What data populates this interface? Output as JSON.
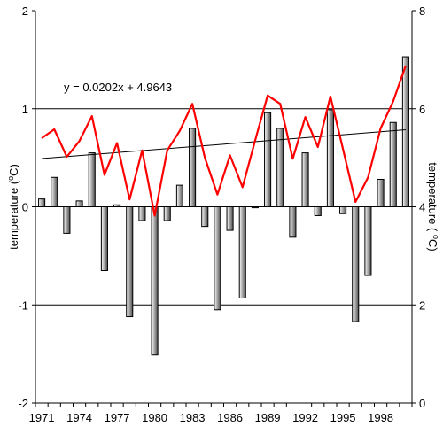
{
  "chart_data": {
    "type": "bar",
    "x": [
      1971,
      1972,
      1973,
      1974,
      1975,
      1976,
      1977,
      1978,
      1979,
      1980,
      1981,
      1982,
      1983,
      1984,
      1985,
      1986,
      1987,
      1988,
      1989,
      1990,
      1991,
      1992,
      1993,
      1994,
      1995,
      1996,
      1997,
      1998,
      1999,
      2000
    ],
    "x_tick_labels": [
      "1971",
      "1974",
      "1977",
      "1980",
      "1983",
      "1986",
      "1989",
      "1992",
      "1995",
      "1998"
    ],
    "left_axis": {
      "label": "temperature (°C)",
      "label_prefix": "temperature (",
      "label_sup": "o",
      "label_suffix": "C)",
      "ylim": [
        -2,
        2
      ],
      "ticks": [
        "-2",
        "-1",
        "0",
        "1",
        "2"
      ]
    },
    "right_axis": {
      "label": "temperature ( °C)",
      "label_prefix": "temperature ( ",
      "label_sup": "o",
      "label_suffix": "C)",
      "ylim": [
        0,
        8
      ],
      "ticks": [
        "0",
        "2",
        "4",
        "6",
        "8"
      ]
    },
    "gridlines_left": [
      -1,
      0,
      1
    ],
    "bars": {
      "axis": "left",
      "values": [
        0.08,
        0.3,
        -0.27,
        0.06,
        0.55,
        -0.65,
        0.02,
        -1.12,
        -0.14,
        -1.51,
        -0.14,
        0.22,
        0.8,
        -0.2,
        -1.05,
        -0.24,
        -0.93,
        -0.01,
        0.96,
        0.8,
        -0.31,
        0.55,
        -0.09,
        0.99,
        -0.07,
        -1.17,
        -0.7,
        0.28,
        0.86,
        1.53
      ]
    },
    "line": {
      "axis": "right",
      "color": "#ff0000",
      "values": [
        5.4,
        5.58,
        5.02,
        5.34,
        5.85,
        4.65,
        5.3,
        4.15,
        5.15,
        3.82,
        5.15,
        5.55,
        6.1,
        5.0,
        4.25,
        5.05,
        4.4,
        5.35,
        6.27,
        6.1,
        4.98,
        5.83,
        5.22,
        6.25,
        5.18,
        4.1,
        4.6,
        5.6,
        6.15,
        6.88
      ]
    },
    "trendline": {
      "axis": "right",
      "equation": "y = 0.0202x + 4.9643",
      "slope": 0.0202,
      "intercept": 4.9643,
      "color": "#000000"
    }
  }
}
